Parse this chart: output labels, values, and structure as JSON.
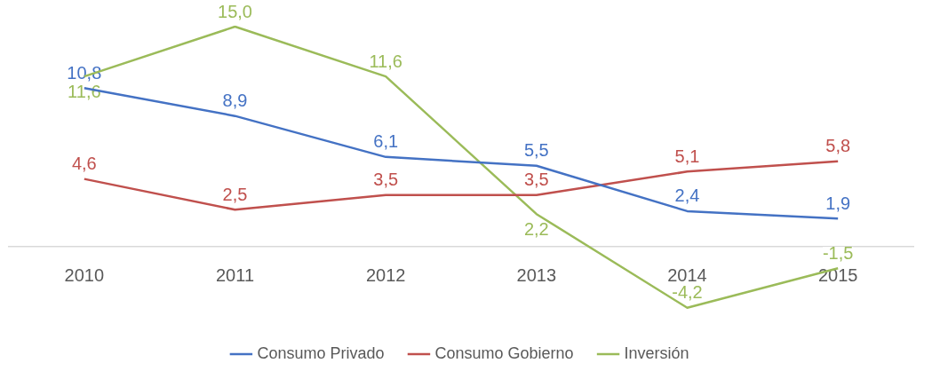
{
  "chart_data": {
    "type": "line",
    "categories": [
      "2010",
      "2011",
      "2012",
      "2013",
      "2014",
      "2015"
    ],
    "series": [
      {
        "name": "Consumo Privado",
        "color": "#4472c4",
        "values": [
          10.8,
          8.9,
          6.1,
          5.5,
          2.4,
          1.9
        ],
        "value_labels": [
          "10,8",
          "8,9",
          "6,1",
          "5,5",
          "2,4",
          "1,9"
        ]
      },
      {
        "name": "Consumo Gobierno",
        "color": "#c0504d",
        "values": [
          4.6,
          2.5,
          3.5,
          3.5,
          5.1,
          5.8
        ],
        "value_labels": [
          "4,6",
          "2,5",
          "3,5",
          "3,5",
          "5,1",
          "5,8"
        ]
      },
      {
        "name": "Inversión",
        "color": "#9bbb59",
        "values": [
          11.6,
          15.0,
          11.6,
          2.2,
          -4.2,
          -1.5
        ],
        "value_labels": [
          "11,6",
          "15,0",
          "11,6",
          "2,2",
          "-4,2",
          "-1,5"
        ]
      }
    ],
    "legend": "bottom",
    "tick_labels": "x",
    "marker": "none",
    "line_style": "solid"
  }
}
